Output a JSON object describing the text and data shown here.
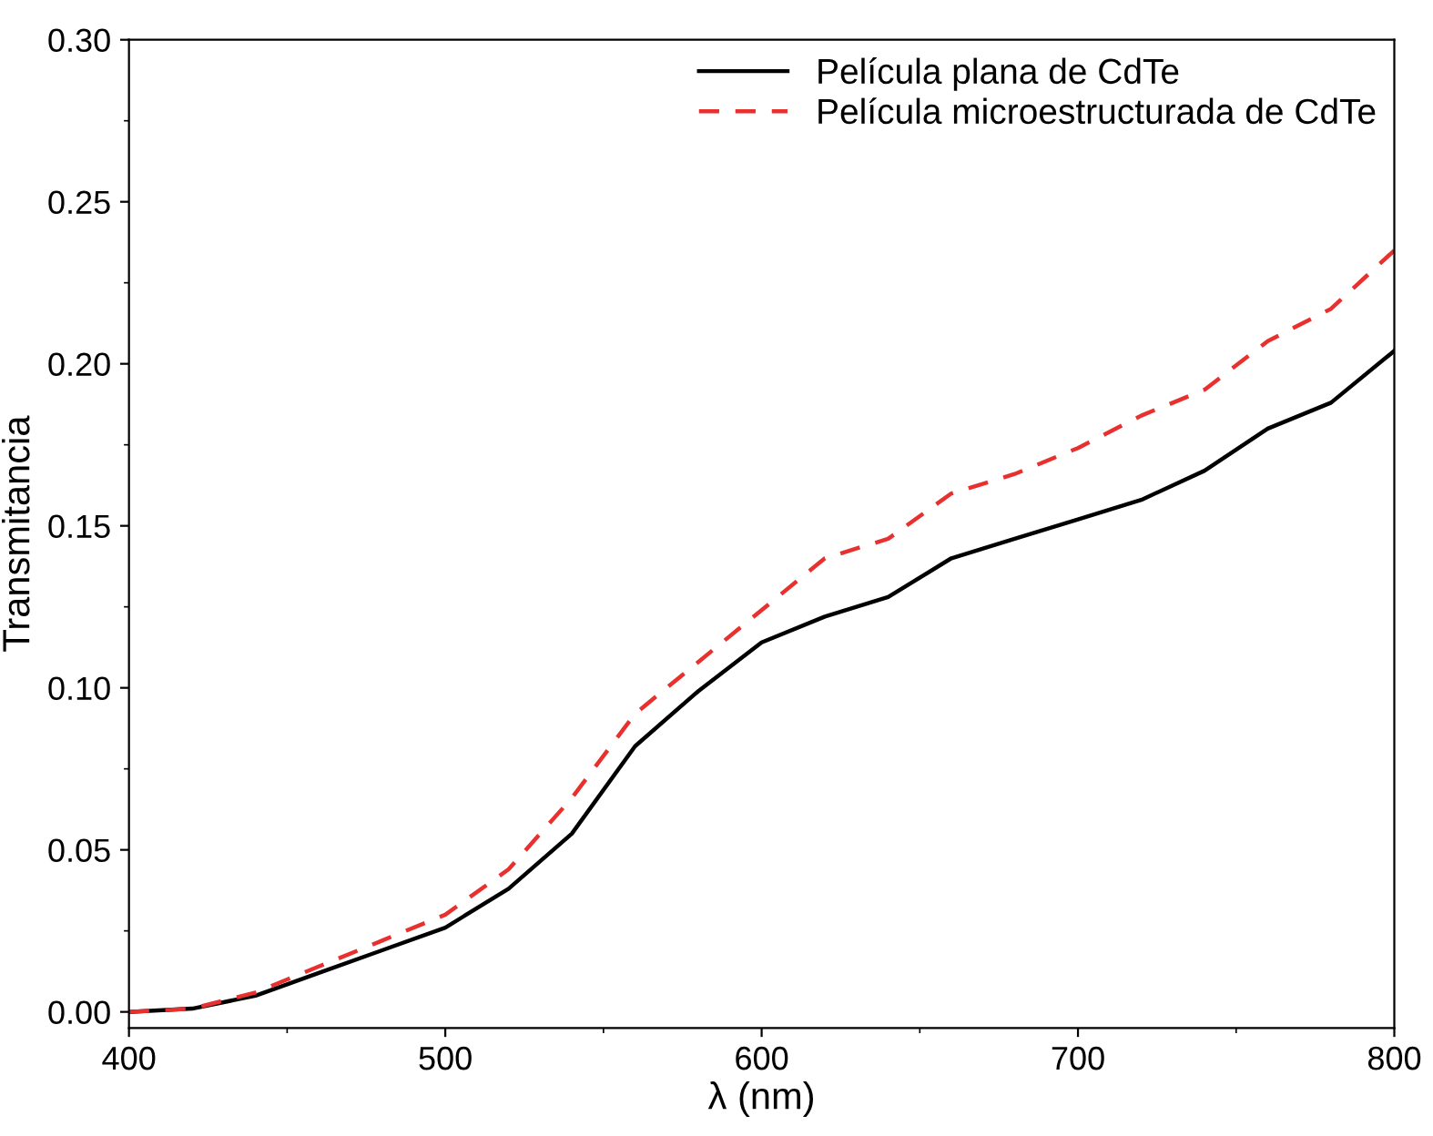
{
  "chart_data": {
    "type": "line",
    "xlabel": "λ (nm)",
    "ylabel": "Transmitancia",
    "x": [
      400,
      420,
      440,
      460,
      480,
      500,
      520,
      540,
      560,
      580,
      600,
      620,
      640,
      660,
      680,
      700,
      720,
      740,
      760,
      780,
      800
    ],
    "series": [
      {
        "name": "Película plana de CdTe",
        "color": "#000000",
        "line_style": "solid",
        "values": [
          0.0,
          0.001,
          0.005,
          0.012,
          0.019,
          0.026,
          0.038,
          0.055,
          0.082,
          0.099,
          0.114,
          0.122,
          0.128,
          0.14,
          0.146,
          0.152,
          0.158,
          0.167,
          0.18,
          0.188,
          0.204
        ]
      },
      {
        "name": "Película microestructurada de CdTe",
        "color": "#e8312f",
        "line_style": "dashed",
        "values": [
          0.0,
          0.001,
          0.006,
          0.014,
          0.022,
          0.03,
          0.044,
          0.066,
          0.092,
          0.108,
          0.124,
          0.14,
          0.146,
          0.16,
          0.166,
          0.174,
          0.184,
          0.192,
          0.207,
          0.217,
          0.235
        ]
      }
    ],
    "xlim": [
      400,
      800
    ],
    "xticks": [
      400,
      500,
      600,
      700,
      800
    ],
    "ylim": [
      -0.005,
      0.3
    ],
    "yticks": [
      {
        "value": 0,
        "label": "0.00"
      },
      {
        "value": 0.05,
        "label": "0.05"
      },
      {
        "value": 0.1,
        "label": "0.10"
      },
      {
        "value": 0.15,
        "label": "0.15"
      },
      {
        "value": 0.2,
        "label": "0.20"
      },
      {
        "value": 0.25,
        "label": "0.25"
      },
      {
        "value": 0.3,
        "label": "0.30"
      }
    ],
    "grid": false,
    "legend": "top right"
  }
}
